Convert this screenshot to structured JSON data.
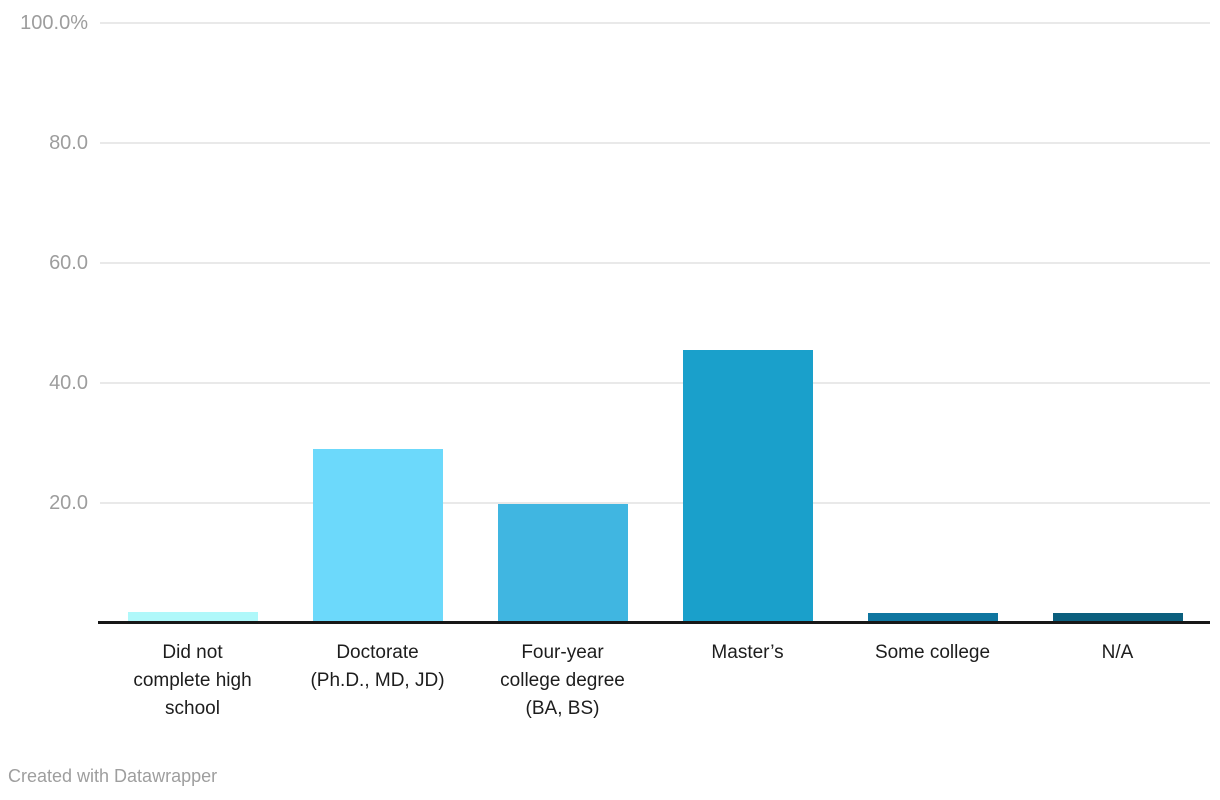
{
  "chart_data": {
    "type": "bar",
    "title": "",
    "xlabel": "",
    "ylabel": "",
    "categories": [
      "Did not complete high school",
      "Doctorate (Ph.D., MD, JD)",
      "Four-year college degree (BA, BS)",
      "Master’s",
      "Some college",
      "N/A"
    ],
    "category_lines": [
      [
        "Did not",
        "complete high",
        "school"
      ],
      [
        "Doctorate",
        "(Ph.D., MD, JD)"
      ],
      [
        "Four-year",
        "college degree",
        "(BA, BS)"
      ],
      [
        "Master’s"
      ],
      [
        "Some college"
      ],
      [
        "N/A"
      ]
    ],
    "values": [
      1.8,
      29.0,
      19.8,
      45.5,
      1.7,
      1.7
    ],
    "bar_colors": [
      "#aff8fa",
      "#6cd9fb",
      "#40b6e1",
      "#1aa0cb",
      "#0f76a0",
      "#0b5f7e"
    ],
    "ylim": [
      0,
      100
    ],
    "yticks": [
      100,
      80,
      60,
      40,
      20
    ],
    "ytick_labels": [
      "100.0%",
      "80.0",
      "60.0",
      "40.0",
      "20.0"
    ],
    "grid": true,
    "legend": "none"
  },
  "colors": {
    "grid": "#e9e9e9",
    "axis": "#171717",
    "tick_text": "#9d9d9d",
    "label_text": "#1d1d1d",
    "footer_text": "#9e9e9e",
    "background": "#ffffff"
  },
  "footer": {
    "credit": "Created with Datawrapper"
  }
}
